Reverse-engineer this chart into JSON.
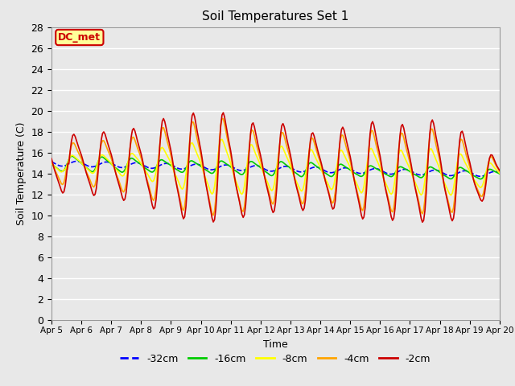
{
  "title": "Soil Temperatures Set 1",
  "xlabel": "Time",
  "ylabel": "Soil Temperature (C)",
  "annotation": "DC_met",
  "ylim": [
    0,
    28
  ],
  "yticks": [
    0,
    2,
    4,
    6,
    8,
    10,
    12,
    14,
    16,
    18,
    20,
    22,
    24,
    26,
    28
  ],
  "xtick_labels": [
    "Apr 5",
    "Apr 6",
    "Apr 7",
    "Apr 8",
    "Apr 9",
    "Apr 10",
    "Apr 11",
    "Apr 12",
    "Apr 13",
    "Apr 14",
    "Apr 15",
    "Apr 16",
    "Apr 17",
    "Apr 18",
    "Apr 19",
    "Apr 20"
  ],
  "series": {
    "-32cm": {
      "color": "#0000FF",
      "linestyle": "--",
      "linewidth": 1.2
    },
    "-16cm": {
      "color": "#00CC00",
      "linestyle": "-",
      "linewidth": 1.2
    },
    "-8cm": {
      "color": "#FFFF00",
      "linestyle": "-",
      "linewidth": 1.2
    },
    "-4cm": {
      "color": "#FFA500",
      "linestyle": "-",
      "linewidth": 1.2
    },
    "-2cm": {
      "color": "#CC0000",
      "linestyle": "-",
      "linewidth": 1.2
    }
  },
  "bg_color": "#E8E8E8",
  "plot_bg_color": "#E8E8E8",
  "grid_color": "#FFFFFF",
  "annotation_bg": "#FFFF99",
  "annotation_border": "#CC0000",
  "annotation_text_color": "#CC0000",
  "figsize": [
    6.4,
    4.8
  ],
  "dpi": 100
}
